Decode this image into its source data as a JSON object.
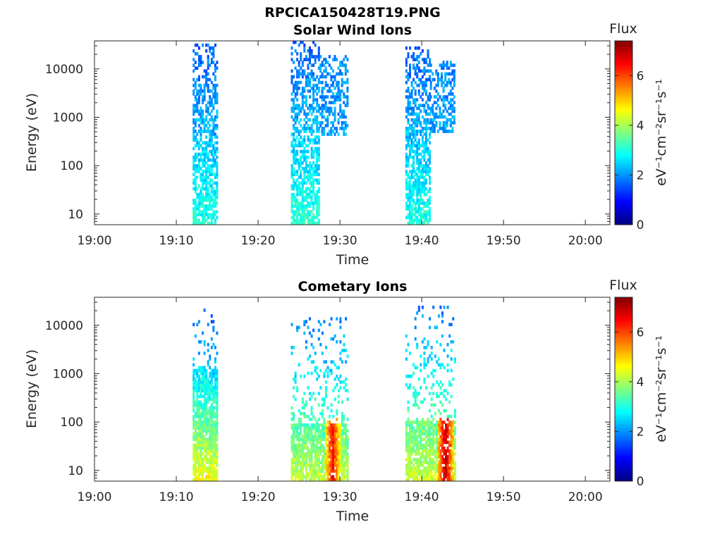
{
  "figure": {
    "title": "RPCICA150428T19.PNG",
    "colorbar_label": "Flux",
    "colorbar_units": "eV⁻¹cm⁻²sr⁻¹s⁻¹",
    "colormap": [
      "#00007f",
      "#0000ff",
      "#007fff",
      "#00ffff",
      "#7fff7f",
      "#ffff00",
      "#ff7f00",
      "#ff0000",
      "#7f0000"
    ]
  },
  "chart_data": [
    {
      "type": "heatmap",
      "title": "Solar Wind Ions",
      "xlabel": "Time",
      "ylabel": "Energy (eV)",
      "x_ticks": [
        "19:00",
        "19:10",
        "19:20",
        "19:30",
        "19:40",
        "19:50",
        "20:00"
      ],
      "y_ticks": [
        "10",
        "100",
        "1000",
        "10000"
      ],
      "y_scale": "log",
      "xlim": [
        "19:00",
        "20:03"
      ],
      "ylim": [
        6,
        38000
      ],
      "colorbar": {
        "label": "Flux",
        "units": "eV⁻¹cm⁻²sr⁻¹s⁻¹",
        "ticks": [
          "0",
          "2",
          "4",
          "6"
        ],
        "range": [
          0,
          7.4
        ]
      },
      "grid": false,
      "bursts": [
        {
          "start": "19:12",
          "end": "19:15",
          "top_energy": 35000,
          "flux_high_energy": 1.6,
          "flux_low_energy": 3.0
        },
        {
          "start": "19:24",
          "end": "19:27.5",
          "top_energy": 38000,
          "flux_high_energy": 1.6,
          "flux_low_energy": 3.1
        },
        {
          "start": "19:27.5",
          "end": "19:31",
          "top_energy": 20000,
          "bottom_energy": 400,
          "flux_high_energy": 1.9,
          "flux_low_energy": 2.3
        },
        {
          "start": "19:38",
          "end": "19:41",
          "top_energy": 30000,
          "flux_high_energy": 1.6,
          "flux_low_energy": 3.0
        },
        {
          "start": "19:41",
          "end": "19:44",
          "top_energy": 15000,
          "bottom_energy": 500,
          "flux_high_energy": 1.9,
          "flux_low_energy": 2.4
        }
      ]
    },
    {
      "type": "heatmap",
      "title": "Cometary Ions",
      "xlabel": "Time",
      "ylabel": "Energy (eV)",
      "x_ticks": [
        "19:00",
        "19:10",
        "19:20",
        "19:30",
        "19:40",
        "19:50",
        "20:00"
      ],
      "y_ticks": [
        "10",
        "100",
        "1000",
        "10000"
      ],
      "y_scale": "log",
      "xlim": [
        "19:00",
        "20:03"
      ],
      "ylim": [
        6,
        38000
      ],
      "colorbar": {
        "label": "Flux",
        "units": "eV⁻¹cm⁻²sr⁻¹s⁻¹",
        "ticks": [
          "0",
          "2",
          "4",
          "6"
        ],
        "range": [
          0,
          7.4
        ]
      },
      "grid": false,
      "bursts": [
        {
          "start": "19:12",
          "end": "19:15",
          "top_energy": 22000,
          "dense_top_energy": 1300,
          "flux_high_energy": 1.4,
          "flux_low_energy": 4.6
        },
        {
          "start": "19:24",
          "end": "19:31",
          "top_energy": 15000,
          "dense_top_energy": 90,
          "flux_high_energy": 1.8,
          "flux_low_energy": 4.2,
          "peak": {
            "time": "19:29",
            "flux": 6.5
          }
        },
        {
          "start": "19:38",
          "end": "19:44",
          "top_energy": 26000,
          "dense_top_energy": 110,
          "flux_high_energy": 1.8,
          "flux_low_energy": 4.3,
          "peak": {
            "time": "19:42.8",
            "flux": 7.0
          }
        }
      ]
    }
  ]
}
